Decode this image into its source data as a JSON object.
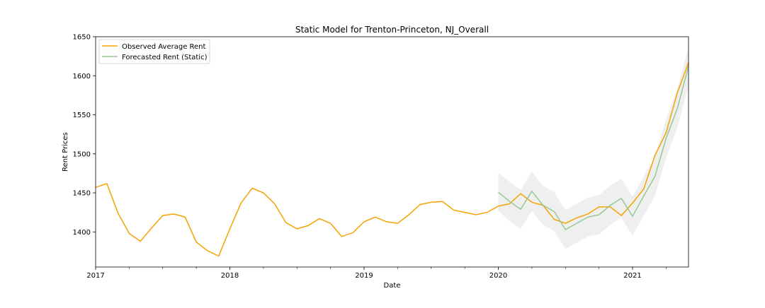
{
  "chart_data": {
    "type": "line",
    "title": "Static Model for Trenton-Princeton, NJ_Overall",
    "xlabel": "Date",
    "ylabel": "Rent Prices",
    "xlim": [
      "2017-01",
      "2021-06"
    ],
    "ylim": [
      1355,
      1650
    ],
    "x_ticks": [
      "2017",
      "2018",
      "2019",
      "2020",
      "2021"
    ],
    "y_ticks": [
      1400,
      1450,
      1500,
      1550,
      1600,
      1650
    ],
    "grid": false,
    "legend_position": "top-left",
    "series": [
      {
        "name": "Observed Average Rent",
        "color": "#f5a300",
        "x": [
          "2017-01",
          "2017-02",
          "2017-03",
          "2017-04",
          "2017-05",
          "2017-06",
          "2017-07",
          "2017-08",
          "2017-09",
          "2017-10",
          "2017-11",
          "2017-12",
          "2018-01",
          "2018-02",
          "2018-03",
          "2018-04",
          "2018-05",
          "2018-06",
          "2018-07",
          "2018-08",
          "2018-09",
          "2018-10",
          "2018-11",
          "2018-12",
          "2019-01",
          "2019-02",
          "2019-03",
          "2019-04",
          "2019-05",
          "2019-06",
          "2019-07",
          "2019-08",
          "2019-09",
          "2019-10",
          "2019-11",
          "2019-12",
          "2020-01",
          "2020-02",
          "2020-03",
          "2020-04",
          "2020-05",
          "2020-06",
          "2020-07",
          "2020-08",
          "2020-09",
          "2020-10",
          "2020-11",
          "2020-12",
          "2021-01",
          "2021-02",
          "2021-03",
          "2021-04",
          "2021-05",
          "2021-06"
        ],
        "values": [
          1457,
          1462,
          1424,
          1398,
          1388,
          1405,
          1421,
          1423,
          1419,
          1387,
          1376,
          1369,
          1404,
          1437,
          1456,
          1450,
          1436,
          1412,
          1404,
          1408,
          1417,
          1411,
          1394,
          1399,
          1413,
          1419,
          1413,
          1411,
          1422,
          1435,
          1438,
          1439,
          1428,
          1425,
          1422,
          1425,
          1433,
          1436,
          1449,
          1438,
          1434,
          1416,
          1411,
          1418,
          1423,
          1432,
          1432,
          1421,
          1437,
          1455,
          1498,
          1527,
          1578,
          1617
        ]
      },
      {
        "name": "Forecasted Rent (Static)",
        "color": "#96c896",
        "x": [
          "2020-01",
          "2020-02",
          "2020-03",
          "2020-04",
          "2020-05",
          "2020-06",
          "2020-07",
          "2020-08",
          "2020-09",
          "2020-10",
          "2020-11",
          "2020-12",
          "2021-01",
          "2021-02",
          "2021-03",
          "2021-04",
          "2021-05",
          "2021-06"
        ],
        "values": [
          1451,
          1439,
          1429,
          1452,
          1434,
          1426,
          1403,
          1411,
          1419,
          1422,
          1434,
          1443,
          1420,
          1446,
          1471,
          1520,
          1558,
          1612
        ],
        "ci_lower": [
          1427,
          1414,
          1404,
          1427,
          1409,
          1401,
          1378,
          1386,
          1394,
          1397,
          1409,
          1418,
          1395,
          1421,
          1446,
          1495,
          1533,
          1587
        ],
        "ci_upper": [
          1476,
          1464,
          1454,
          1477,
          1459,
          1451,
          1428,
          1436,
          1444,
          1447,
          1459,
          1468,
          1445,
          1471,
          1496,
          1545,
          1583,
          1637
        ]
      }
    ]
  }
}
